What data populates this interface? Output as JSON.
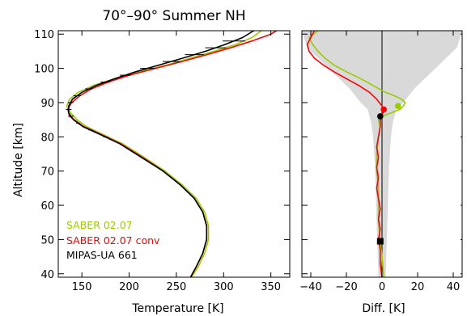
{
  "chart_data": [
    {
      "type": "line",
      "title": "70°–90° Summer NH",
      "xlabel": "Temperature   [K]",
      "ylabel": "Altitude  [km]",
      "xlim": [
        125,
        370
      ],
      "ylim": [
        39,
        111
      ],
      "xticks": [
        150,
        200,
        250,
        300,
        350
      ],
      "yticks": [
        40,
        50,
        60,
        70,
        80,
        90,
        100,
        110
      ],
      "legend_placement": "bottom-left",
      "series": [
        {
          "name": "SABER 02.07",
          "color": "#99cc00",
          "points": [
            [
              266,
              39
            ],
            [
              273,
              42
            ],
            [
              280,
              46
            ],
            [
              284,
              50
            ],
            [
              284,
              54
            ],
            [
              280,
              58
            ],
            [
              271,
              62
            ],
            [
              256,
              66
            ],
            [
              238,
              70
            ],
            [
              216,
              74
            ],
            [
              193,
              78
            ],
            [
              170,
              81
            ],
            [
              155,
              83
            ],
            [
              145,
              85
            ],
            [
              138,
              87
            ],
            [
              134,
              89
            ],
            [
              137,
              91
            ],
            [
              146,
              93
            ],
            [
              162,
              95
            ],
            [
              185,
              97
            ],
            [
              212,
              99
            ],
            [
              240,
              101
            ],
            [
              265,
              103
            ],
            [
              290,
              105
            ],
            [
              313,
              107
            ],
            [
              330,
              109
            ],
            [
              340,
              111
            ]
          ]
        },
        {
          "name": "SABER 02.07  conv",
          "color": "#ff0000",
          "points": [
            [
              265,
              39
            ],
            [
              271,
              42
            ],
            [
              278,
              46
            ],
            [
              282,
              50
            ],
            [
              282,
              54
            ],
            [
              278,
              58
            ],
            [
              269,
              62
            ],
            [
              254,
              66
            ],
            [
              236,
              70
            ],
            [
              214,
              74
            ],
            [
              191,
              78
            ],
            [
              168,
              81
            ],
            [
              152,
              83
            ],
            [
              142,
              85
            ],
            [
              137,
              86
            ],
            [
              135,
              88
            ],
            [
              139,
              90
            ],
            [
              148,
              92
            ],
            [
              160,
              94
            ],
            [
              178,
              96
            ],
            [
              200,
              98
            ],
            [
              228,
              100
            ],
            [
              256,
              102
            ],
            [
              282,
              104
            ],
            [
              307,
              106
            ],
            [
              330,
              108
            ],
            [
              350,
              110
            ],
            [
              356,
              111
            ]
          ]
        },
        {
          "name": "MIPAS-UA 661",
          "color": "#000000",
          "points": [
            [
              265,
              39
            ],
            [
              271,
              42
            ],
            [
              278,
              46
            ],
            [
              282,
              50
            ],
            [
              282,
              54
            ],
            [
              278,
              58
            ],
            [
              269,
              62
            ],
            [
              254,
              66
            ],
            [
              236,
              70
            ],
            [
              213,
              74
            ],
            [
              190,
              78
            ],
            [
              167,
              81
            ],
            [
              151,
              83
            ],
            [
              141,
              85
            ],
            [
              136,
              87
            ],
            [
              136,
              89
            ],
            [
              140,
              91
            ],
            [
              150,
              93
            ],
            [
              165,
              95
            ],
            [
              185,
              97
            ],
            [
              207,
              99
            ],
            [
              232,
              101
            ],
            [
              257,
              103
            ],
            [
              281,
              105
            ],
            [
              302,
              107
            ],
            [
              320,
              109
            ],
            [
              332,
              111
            ]
          ]
        }
      ],
      "error_bars": {
        "series": "MIPAS-UA 661",
        "altitudes": [
          80,
          82,
          84,
          86,
          88,
          90,
          92,
          94,
          96,
          98,
          100,
          102,
          104,
          106,
          108
        ],
        "halfwidths": [
          2,
          2,
          2,
          3,
          3,
          3,
          4,
          4,
          5,
          6,
          8,
          9,
          10,
          11,
          12
        ]
      }
    },
    {
      "type": "line",
      "title": "",
      "xlabel": "Diff.  [K]",
      "ylabel": "",
      "xlim": [
        -45,
        45
      ],
      "ylim": [
        39,
        111
      ],
      "xticks": [
        -40,
        -20,
        0,
        20,
        40
      ],
      "yticks": [
        40,
        50,
        60,
        70,
        80,
        90,
        100,
        110
      ],
      "zero_line": true,
      "shaded_band": {
        "color": "#d9d9d9",
        "upper": [
          [
            2,
            39
          ],
          [
            3,
            55
          ],
          [
            4,
            72
          ],
          [
            5,
            80
          ],
          [
            6,
            84
          ],
          [
            8,
            88
          ],
          [
            12,
            90
          ],
          [
            18,
            94
          ],
          [
            26,
            98
          ],
          [
            34,
            102
          ],
          [
            42,
            106
          ],
          [
            45,
            111
          ]
        ],
        "lower": [
          [
            -2,
            39
          ],
          [
            -3,
            55
          ],
          [
            -4,
            72
          ],
          [
            -5,
            80
          ],
          [
            -6,
            84
          ],
          [
            -8,
            88
          ],
          [
            -12,
            90
          ],
          [
            -18,
            94
          ],
          [
            -26,
            98
          ],
          [
            -34,
            102
          ],
          [
            -42,
            106
          ],
          [
            -45,
            111
          ]
        ]
      },
      "series": [
        {
          "name": "SABER 02.07",
          "color": "#99cc00",
          "points": [
            [
              1,
              39
            ],
            [
              0,
              45
            ],
            [
              -1,
              50
            ],
            [
              -2,
              55
            ],
            [
              -2,
              60
            ],
            [
              -2,
              65
            ],
            [
              -3,
              70
            ],
            [
              -3,
              75
            ],
            [
              -2,
              80
            ],
            [
              -1,
              83
            ],
            [
              -2,
              85
            ],
            [
              0,
              86
            ],
            [
              5,
              87
            ],
            [
              10,
              88
            ],
            [
              12,
              89
            ],
            [
              13,
              90
            ],
            [
              11,
              91
            ],
            [
              7,
              92
            ],
            [
              2,
              93
            ],
            [
              -5,
              95
            ],
            [
              -12,
              97
            ],
            [
              -20,
              99
            ],
            [
              -27,
              101
            ],
            [
              -32,
              103
            ],
            [
              -36,
              105
            ],
            [
              -39,
              107
            ],
            [
              -41,
              109
            ],
            [
              -36,
              111
            ]
          ]
        },
        {
          "name": "SABER 02.07  conv",
          "color": "#ff0000",
          "points": [
            [
              0,
              39
            ],
            [
              -1,
              43
            ],
            [
              -1,
              47
            ],
            [
              -2,
              50
            ],
            [
              -1,
              53
            ],
            [
              -2,
              56
            ],
            [
              -1,
              59
            ],
            [
              -2,
              62
            ],
            [
              -3,
              65
            ],
            [
              -2,
              68
            ],
            [
              -3,
              71
            ],
            [
              -2,
              74
            ],
            [
              -3,
              77
            ],
            [
              -2,
              80
            ],
            [
              -1,
              83
            ],
            [
              -1,
              85
            ],
            [
              0,
              86
            ],
            [
              1,
              88
            ],
            [
              0,
              89
            ],
            [
              -3,
              91
            ],
            [
              -7,
              93
            ],
            [
              -13,
              95
            ],
            [
              -20,
              97
            ],
            [
              -27,
              99
            ],
            [
              -33,
              101
            ],
            [
              -38,
              103
            ],
            [
              -41,
              105
            ],
            [
              -42,
              107
            ],
            [
              -40,
              109
            ],
            [
              -38,
              111
            ]
          ]
        }
      ],
      "markers": [
        {
          "x": 9,
          "y": 89,
          "color": "#99cc00",
          "shape": "circle"
        },
        {
          "x": 1,
          "y": 88,
          "color": "#ff0000",
          "shape": "circle"
        },
        {
          "x": -1,
          "y": 86,
          "color": "#000000",
          "shape": "circle"
        },
        {
          "x": -1,
          "y": 49.5,
          "color": "#000000",
          "shape": "square"
        }
      ]
    }
  ]
}
